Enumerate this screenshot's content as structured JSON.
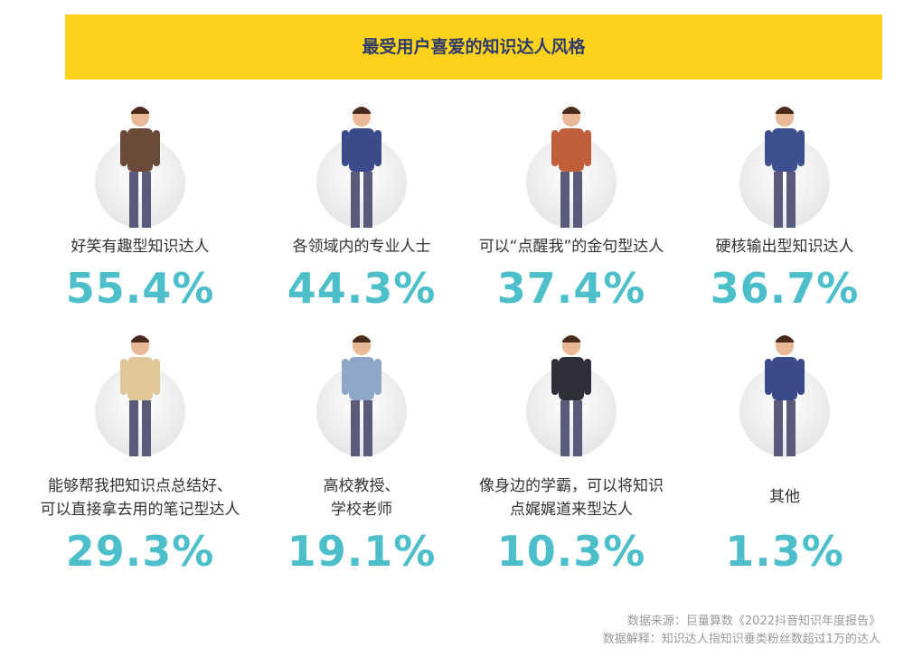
{
  "title": "最受用户喜爱的知识达人风格",
  "items": [
    {
      "label": [
        "好笑有趣型知识达人"
      ],
      "value": "55.4%"
    },
    {
      "label": [
        "各领域内的专业人士"
      ],
      "value": "44.3%"
    },
    {
      "label": [
        "可以“点醒我”的金句型达人"
      ],
      "value": "37.4%"
    },
    {
      "label": [
        "硬核输出型知识达人"
      ],
      "value": "36.7%"
    },
    {
      "label": [
        "能够帮我把知识点总结好、",
        "可以直接拿去用的笔记型达人"
      ],
      "value": "29.3%"
    },
    {
      "label": [
        "高校教授、",
        "学校老师"
      ],
      "value": "19.1%"
    },
    {
      "label": [
        "像身边的学霸，可以将知识",
        "点娓娓道来型达人"
      ],
      "value": "10.3%"
    },
    {
      "label": [
        "其他"
      ],
      "value": "1.3%"
    }
  ],
  "footer": [
    "数据来源：巨量算数《2022抖音知识年度报告》",
    "数据解释：知识达人指知识垂类粉丝数超过1万的达人"
  ]
}
